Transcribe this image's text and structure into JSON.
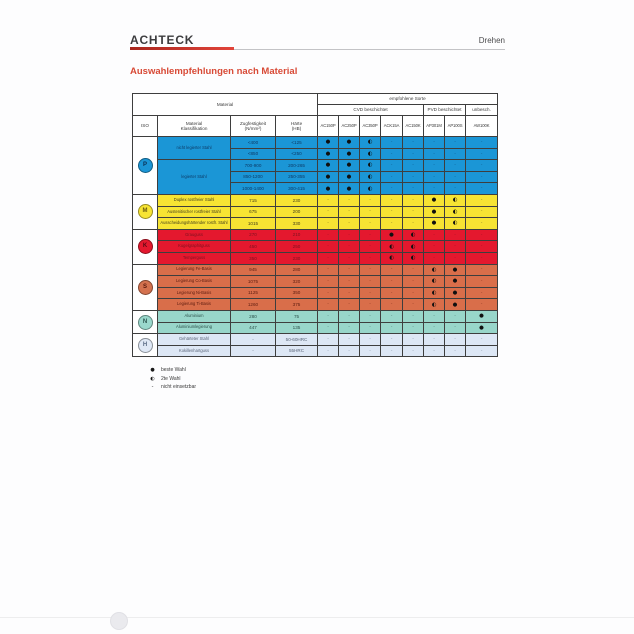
{
  "header": {
    "brand": "ACHTECK",
    "section": "Drehen",
    "title": "Auswahlempfehlungen nach Material"
  },
  "table": {
    "group_material": "Material",
    "group_sorte": "empfohlene Sorte",
    "sub_cvd": "CVD beschichtet",
    "sub_pvd": "PVD beschichtet",
    "sub_unbesch": "unbesch.",
    "col_iso": "ISO",
    "col_class": "Material\nKlassifikation",
    "col_tensile": "Zugfestigkeit\n(N/mm²)",
    "col_hardness": "Härte\n(HB)",
    "grades": [
      "AC150P",
      "AC250P",
      "AC350P",
      "ACK15A",
      "AC150K",
      "AP301M",
      "AP100S",
      "AW100K"
    ],
    "sections": [
      {
        "iso": "P",
        "bg": "#1b96d6",
        "fg": "#0d3a66",
        "badge_bg": "#1b96d6",
        "badge_fg": "#0b2f52",
        "rows": [
          {
            "material": "nicht legierter Stahl",
            "span": 2,
            "tensile": "<400",
            "hardness": "<125",
            "marks": [
              "●",
              "●",
              "◐",
              "-",
              "-",
              "-",
              "-",
              "-"
            ]
          },
          {
            "tensile": "<850",
            "hardness": "<250",
            "marks": [
              "●",
              "●",
              "◐",
              "-",
              "-",
              "-",
              "-",
              "-"
            ]
          },
          {
            "material": "legierter Stahl",
            "span": 3,
            "tensile": "700-900",
            "hardness": "200-265",
            "marks": [
              "●",
              "●",
              "◐",
              "-",
              "-",
              "-",
              "-",
              "-"
            ]
          },
          {
            "tensile": "850-1200",
            "hardness": "250-355",
            "marks": [
              "●",
              "●",
              "◐",
              "-",
              "-",
              "-",
              "-",
              "-"
            ]
          },
          {
            "tensile": "1000-1400",
            "hardness": "300-415",
            "marks": [
              "●",
              "●",
              "◐",
              "-",
              "-",
              "-",
              "-",
              "-"
            ]
          }
        ]
      },
      {
        "iso": "M",
        "bg": "#f7e433",
        "fg": "#45401c",
        "badge_bg": "#f7e433",
        "badge_fg": "#6b5c10",
        "rows": [
          {
            "material": "Duplex rostfreier Stahl",
            "span": 1,
            "tensile": "715",
            "hardness": "230",
            "marks": [
              "-",
              "-",
              "-",
              "-",
              "-",
              "●",
              "◐",
              "-"
            ]
          },
          {
            "material": "Austenitischer rostfreier Stahl",
            "span": 1,
            "tensile": "675",
            "hardness": "200",
            "marks": [
              "-",
              "-",
              "-",
              "-",
              "-",
              "●",
              "◐",
              "-"
            ]
          },
          {
            "material": "Ausscheidungshärtender rostfr. Stahl",
            "span": 1,
            "tensile": "1015",
            "hardness": "330",
            "marks": [
              "-",
              "-",
              "-",
              "-",
              "-",
              "●",
              "◐",
              "-"
            ]
          }
        ]
      },
      {
        "iso": "K",
        "bg": "#e4182e",
        "fg": "#7d1220",
        "badge_bg": "#e4182e",
        "badge_fg": "#5e0a14",
        "rows": [
          {
            "material": "Grauguss",
            "span": 1,
            "tensile": "270",
            "hardness": "210",
            "marks": [
              "-",
              "-",
              "-",
              "●",
              "◐",
              "-",
              "-",
              "-"
            ]
          },
          {
            "material": "Kugelgraphitguss",
            "span": 1,
            "tensile": "450",
            "hardness": "250",
            "marks": [
              "-",
              "-",
              "-",
              "◐",
              "◐",
              "-",
              "-",
              "-"
            ]
          },
          {
            "material": "Temperguss",
            "span": 1,
            "tensile": "350",
            "hardness": "230",
            "marks": [
              "-",
              "-",
              "-",
              "◐",
              "◐",
              "-",
              "-",
              "-"
            ]
          }
        ]
      },
      {
        "iso": "S",
        "bg": "#d96e4a",
        "fg": "#5c1c10",
        "badge_bg": "#d4714e",
        "badge_fg": "#58180c",
        "rows": [
          {
            "material": "Legierung Fe-Basis",
            "span": 1,
            "tensile": "945",
            "hardness": "280",
            "marks": [
              "-",
              "-",
              "-",
              "-",
              "-",
              "◐",
              "●",
              "-"
            ]
          },
          {
            "material": "Legierung Co-Basis",
            "span": 1,
            "tensile": "1075",
            "hardness": "320",
            "marks": [
              "-",
              "-",
              "-",
              "-",
              "-",
              "◐",
              "●",
              "-"
            ]
          },
          {
            "material": "Legierung Ni-Basis",
            "span": 1,
            "tensile": "1125",
            "hardness": "350",
            "marks": [
              "-",
              "-",
              "-",
              "-",
              "-",
              "◐",
              "●",
              "-"
            ]
          },
          {
            "material": "Legierung Ti-Basis",
            "span": 1,
            "tensile": "1260",
            "hardness": "375",
            "marks": [
              "-",
              "-",
              "-",
              "-",
              "-",
              "◐",
              "●",
              "-"
            ]
          }
        ]
      },
      {
        "iso": "N",
        "bg": "#98d6ca",
        "fg": "#2c4f49",
        "badge_bg": "#9ad8cc",
        "badge_fg": "#2a544d",
        "rows": [
          {
            "material": "Aluminium",
            "span": 1,
            "tensile": "280",
            "hardness": "75",
            "marks": [
              "-",
              "-",
              "-",
              "-",
              "-",
              "-",
              "-",
              "●"
            ]
          },
          {
            "material": "Aluminiumlegierung",
            "span": 1,
            "tensile": "447",
            "hardness": "135",
            "marks": [
              "-",
              "-",
              "-",
              "-",
              "-",
              "-",
              "-",
              "●"
            ]
          }
        ]
      },
      {
        "iso": "H",
        "bg": "#dde7f5",
        "fg": "#5a6578",
        "badge_bg": "#dfe8f6",
        "badge_fg": "#5a6a85",
        "rows": [
          {
            "material": "Gehärteter Stahl",
            "span": 1,
            "tensile": "-",
            "hardness": "50-60HRC",
            "marks": [
              "-",
              "-",
              "-",
              "-",
              "-",
              "-",
              "-",
              "-"
            ]
          },
          {
            "material": "Kokillenhartguss",
            "span": 1,
            "tensile": "-",
            "hardness": "55HRC",
            "marks": [
              "-",
              "-",
              "-",
              "-",
              "-",
              "-",
              "-",
              "-"
            ]
          }
        ]
      }
    ]
  },
  "legend": {
    "items": [
      {
        "mark": "●",
        "label": "beste Wahl"
      },
      {
        "mark": "◐",
        "label": "2te Wahl"
      },
      {
        "mark": "-",
        "label": "nicht einsetzbar"
      }
    ]
  }
}
